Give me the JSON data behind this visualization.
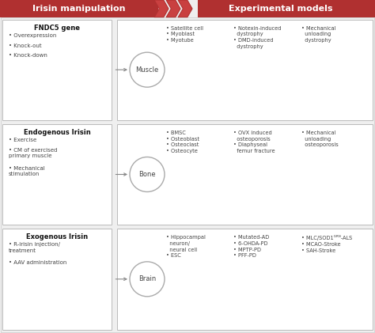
{
  "fig_width": 4.74,
  "fig_height": 4.21,
  "dpi": 100,
  "bg_color": "#efefef",
  "header_bg": "#b03030",
  "header_text_color": "#ffffff",
  "header_left": "Irisin manipulation",
  "header_right": "Experimental models",
  "box_border_color": "#bbbbbb",
  "text_color": "#444444",
  "bold_color": "#111111",
  "sections_left": [
    {
      "title": "FNDC5 gene",
      "bullets": [
        "Overexpression",
        "Knock-out",
        "Knock-down"
      ]
    },
    {
      "title": "Endogenous Irisin",
      "bullets": [
        "Exercise",
        "CM of exercised\nprimary muscle",
        "Mechanical\nstimulation"
      ]
    },
    {
      "title": "Exogenous Irisin",
      "bullets": [
        "R-irisin injection/\ntreatment",
        "AAV administration"
      ]
    }
  ],
  "sections_right": [
    {
      "label": "Muscle",
      "col1": "• Satellite cell\n• Myoblast\n• Myotube",
      "col2": "• Notexin-induced\n  dystrophy\n• DMD-induced\n  dystrophy",
      "col3": "• Mechanical\n  unloading\n  dystrophy"
    },
    {
      "label": "Bone",
      "col1": "• BMSC\n• Osteoblast\n• Osteoclast\n• Osteocyte",
      "col2": "• OVX induced\n  osteoporosis\n• Diaphyseal\n  femur fracture",
      "col3": "• Mechanical\n  unloading\n  osteoporosis"
    },
    {
      "label": "Brain",
      "col1": "• Hippocampal\n  neuron/\n  neural cell\n• ESC",
      "col2": "• Mutated-AD\n• 6-OHDA-PD\n• MPTP-PD\n• PFF-PD",
      "col3": "• MLC/SOD1ᴳᴿᴺ-ALS\n• MCAO-Stroke\n• SAH-Stroke"
    }
  ]
}
